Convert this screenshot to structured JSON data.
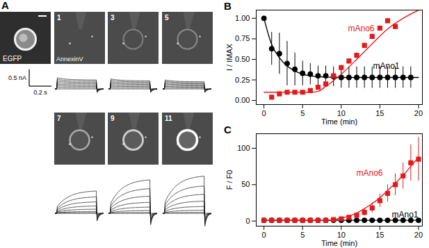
{
  "panel_A": {
    "label": "A",
    "images": [
      {
        "caption": "EGFP"
      },
      {
        "number": "1",
        "caption": "AnnexinV"
      },
      {
        "number": "3"
      },
      {
        "number": "5"
      },
      {
        "number": "7"
      },
      {
        "number": "9"
      },
      {
        "number": "11"
      }
    ],
    "scale_bar": {
      "current": "0.5 nA",
      "time": "0.2 s"
    }
  },
  "chart_data": [
    {
      "type": "scatter",
      "title": "B",
      "x_label": "Time (min)",
      "y_label": "I / IMAX",
      "xlim": [
        -1,
        20.5
      ],
      "xticks": [
        0,
        5,
        10,
        15,
        20
      ],
      "ylim": [
        -0.05,
        1.1
      ],
      "yticks": [
        {
          "value": 0,
          "label": "0.00"
        },
        {
          "value": 0.25,
          "label": "0.25"
        },
        {
          "value": 0.5,
          "label": "0.50"
        },
        {
          "value": 0.75,
          "label": "0.75"
        },
        {
          "value": 1,
          "label": "1.00"
        }
      ],
      "series": [
        {
          "name": "mAno1",
          "color": "#000000",
          "marker": "circle",
          "x": [
            0,
            1,
            2,
            3,
            4,
            5,
            6,
            7,
            8,
            9,
            10,
            11,
            12,
            13,
            14,
            15,
            16,
            17,
            18,
            19
          ],
          "values": [
            1.0,
            0.63,
            0.57,
            0.45,
            0.38,
            0.33,
            0.32,
            0.3,
            0.3,
            0.29,
            0.28,
            0.28,
            0.28,
            0.28,
            0.28,
            0.28,
            0.28,
            0.28,
            0.28,
            0.28
          ],
          "errors": [
            0,
            0.2,
            0.25,
            0.27,
            0.2,
            0.15,
            0.13,
            0.12,
            0.12,
            0.12,
            0.13,
            0.13,
            0.13,
            0.13,
            0.13,
            0.13,
            0.13,
            0.13,
            0.13,
            0.13
          ],
          "fit": {
            "x": [
              0,
              1,
              2,
              3,
              4,
              5,
              6,
              8,
              10,
              12,
              15,
              20
            ],
            "values": [
              1.0,
              0.68,
              0.52,
              0.42,
              0.36,
              0.32,
              0.3,
              0.285,
              0.28,
              0.28,
              0.28,
              0.28
            ]
          }
        },
        {
          "name": "mAno6",
          "color": "#e31a1c",
          "marker": "square",
          "x": [
            1,
            2,
            3,
            4,
            5,
            6,
            7,
            8,
            9,
            10,
            11,
            12,
            13,
            14,
            15,
            16,
            17
          ],
          "values": [
            0.04,
            0.08,
            0.1,
            0.1,
            0.1,
            0.12,
            0.16,
            0.2,
            0.3,
            0.4,
            0.48,
            0.55,
            0.67,
            0.78,
            0.88,
            0.97,
            0.9
          ],
          "errors": [
            0.02,
            0.02,
            0.02,
            0.02,
            0.02,
            0.02,
            0.03,
            0.03,
            0.03,
            0.03,
            0.03,
            0.03,
            0.03,
            0.03,
            0.03,
            0.03,
            0.03
          ],
          "fit": {
            "x": [
              0,
              2,
              4,
              6,
              7,
              8,
              10,
              12,
              14,
              16,
              18,
              20
            ],
            "values": [
              0.1,
              0.1,
              0.1,
              0.1,
              0.11,
              0.17,
              0.32,
              0.5,
              0.69,
              0.87,
              1.0,
              1.1
            ]
          }
        }
      ]
    },
    {
      "type": "scatter",
      "title": "C",
      "x_label": "Time (min)",
      "y_label": "F / F0",
      "xlim": [
        -1,
        20.5
      ],
      "xticks": [
        0,
        5,
        10,
        15,
        20
      ],
      "ylim": [
        -7,
        120
      ],
      "yticks": [
        0,
        50,
        100
      ],
      "series": [
        {
          "name": "mAno1",
          "color": "#000000",
          "marker": "circle",
          "x": [
            0,
            1,
            2,
            3,
            4,
            5,
            6,
            7,
            8,
            9,
            10,
            11,
            12,
            13,
            14,
            15,
            16,
            17,
            18,
            19,
            20
          ],
          "values": [
            1,
            1,
            1,
            1,
            1,
            1,
            1,
            1,
            1,
            1,
            1,
            1,
            1,
            1,
            1,
            1,
            1,
            1,
            1,
            1,
            1
          ],
          "errors": [
            1,
            1,
            1,
            1,
            1,
            1,
            1,
            1,
            1,
            1,
            1,
            1,
            1,
            1,
            1,
            1,
            1,
            1,
            1,
            1,
            1
          ],
          "fit": {
            "x": [
              0,
              20
            ],
            "values": [
              1,
              1
            ]
          }
        },
        {
          "name": "mAno6",
          "color": "#e31a1c",
          "marker": "square",
          "x": [
            0,
            1,
            2,
            3,
            4,
            5,
            6,
            7,
            8,
            9,
            10,
            11,
            12,
            13,
            14,
            15,
            16,
            17,
            18,
            19,
            20
          ],
          "values": [
            1,
            1,
            1,
            1,
            1,
            1,
            1,
            1,
            1,
            2,
            3,
            5,
            8,
            12,
            18,
            28,
            38,
            50,
            62,
            80,
            85
          ],
          "errors": [
            0,
            0,
            0,
            0,
            0,
            0,
            0,
            0,
            0,
            1,
            1,
            2,
            3,
            5,
            7,
            9,
            12,
            15,
            18,
            25,
            30
          ],
          "fit": {
            "x": [
              0,
              8,
              9,
              10,
              11,
              12,
              13,
              14,
              15,
              16,
              17,
              18,
              19,
              20
            ],
            "values": [
              1,
              1,
              2,
              4,
              7,
              11,
              17,
              24,
              32,
              42,
              52,
              63,
              75,
              88
            ]
          }
        }
      ]
    }
  ]
}
